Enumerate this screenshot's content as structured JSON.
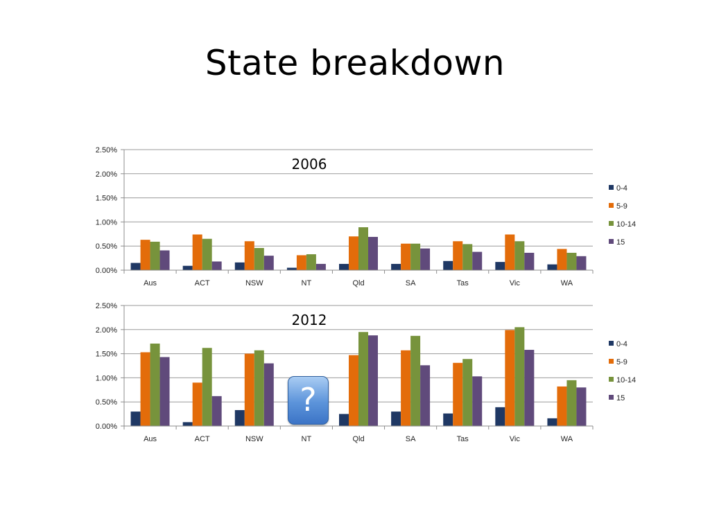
{
  "slide": {
    "title": "State breakdown"
  },
  "help_badge": {
    "glyph": "?",
    "icon": "question-mark-icon"
  },
  "chart_data": [
    {
      "type": "bar",
      "title": "2006",
      "categories": [
        "Aus",
        "ACT",
        "NSW",
        "NT",
        "Qld",
        "SA",
        "Tas",
        "Vic",
        "WA"
      ],
      "ylim": [
        0,
        0.025
      ],
      "yticks": [
        0,
        0.005,
        0.01,
        0.015,
        0.02,
        0.025
      ],
      "ytick_labels": [
        "0.00%",
        "0.50%",
        "1.00%",
        "1.50%",
        "2.00%",
        "2.50%"
      ],
      "grid": true,
      "legend_position": "right",
      "series": [
        {
          "name": "0-4",
          "color": "#1f3864",
          "values": [
            0.0015,
            0.0009,
            0.0016,
            0.0005,
            0.0013,
            0.0013,
            0.0019,
            0.0017,
            0.0012
          ]
        },
        {
          "name": "5-9",
          "color": "#e36c0a",
          "values": [
            0.0063,
            0.0074,
            0.006,
            0.0031,
            0.007,
            0.0055,
            0.006,
            0.0074,
            0.0044
          ]
        },
        {
          "name": "10-14",
          "color": "#77933c",
          "values": [
            0.0059,
            0.0065,
            0.0046,
            0.0033,
            0.0089,
            0.0055,
            0.0054,
            0.006,
            0.0036
          ]
        },
        {
          "name": "15",
          "color": "#604a7b",
          "values": [
            0.0041,
            0.0018,
            0.003,
            0.0013,
            0.0069,
            0.0045,
            0.0038,
            0.0036,
            0.0029
          ]
        }
      ]
    },
    {
      "type": "bar",
      "title": "2012",
      "categories": [
        "Aus",
        "ACT",
        "NSW",
        "NT",
        "Qld",
        "SA",
        "Tas",
        "Vic",
        "WA"
      ],
      "ylim": [
        0,
        0.025
      ],
      "yticks": [
        0,
        0.005,
        0.01,
        0.015,
        0.02,
        0.025
      ],
      "ytick_labels": [
        "0.00%",
        "0.50%",
        "1.00%",
        "1.50%",
        "2.00%",
        "2.50%"
      ],
      "grid": true,
      "legend_position": "right",
      "series": [
        {
          "name": "0-4",
          "color": "#1f3864",
          "values": [
            0.003,
            0.0008,
            0.0033,
            null,
            0.0025,
            0.003,
            0.0026,
            0.0039,
            0.0016
          ]
        },
        {
          "name": "5-9",
          "color": "#e36c0a",
          "values": [
            0.0153,
            0.009,
            0.015,
            null,
            0.0147,
            0.0157,
            0.0131,
            0.0199,
            0.0082
          ]
        },
        {
          "name": "10-14",
          "color": "#77933c",
          "values": [
            0.0171,
            0.0162,
            0.0157,
            null,
            0.0195,
            0.0187,
            0.0139,
            0.0205,
            0.0095
          ]
        },
        {
          "name": "15",
          "color": "#604a7b",
          "values": [
            0.0143,
            0.0062,
            0.013,
            null,
            0.0188,
            0.0126,
            0.0103,
            0.0158,
            0.008
          ]
        }
      ]
    }
  ]
}
